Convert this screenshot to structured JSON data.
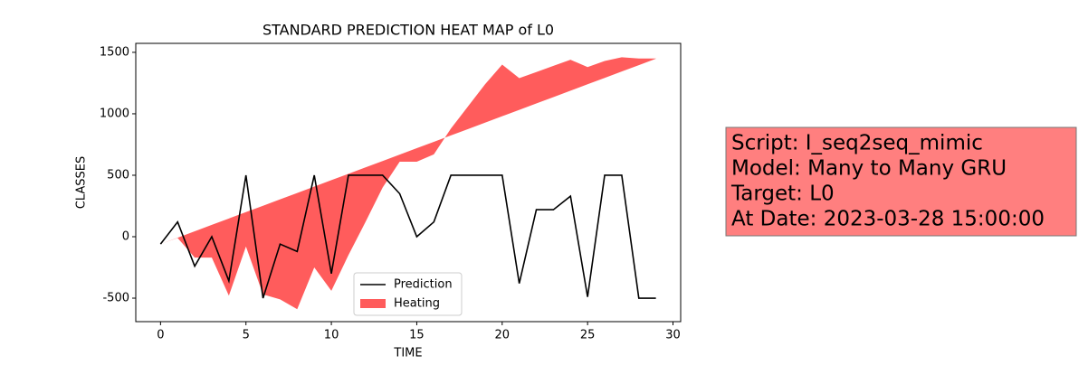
{
  "chart_data": {
    "type": "line",
    "title": "STANDARD PREDICTION HEAT MAP of L0",
    "xlabel": "TIME",
    "ylabel": "CLASSES",
    "x": [
      0,
      1,
      2,
      3,
      4,
      5,
      6,
      7,
      8,
      9,
      10,
      11,
      12,
      13,
      14,
      15,
      16,
      17,
      18,
      19,
      20,
      21,
      22,
      23,
      24,
      25,
      26,
      27,
      28,
      29
    ],
    "series": [
      {
        "name": "Prediction",
        "color": "#000000",
        "values": [
          -60,
          120,
          -240,
          0,
          -360,
          500,
          -500,
          -60,
          -120,
          500,
          -300,
          500,
          500,
          500,
          350,
          0,
          120,
          500,
          500,
          500,
          500,
          -380,
          220,
          220,
          330,
          -490,
          500,
          500,
          -500,
          -500
        ]
      },
      {
        "name": "Heating",
        "color": "#ff3333",
        "kind": "area",
        "values": [
          -60,
          -10,
          -170,
          -170,
          -480,
          -80,
          -470,
          -510,
          -590,
          -250,
          -440,
          -150,
          120,
          400,
          610,
          610,
          670,
          880,
          1060,
          1240,
          1400,
          1290,
          1340,
          1390,
          1440,
          1380,
          1430,
          1460,
          1450,
          1450
        ],
        "base": [
          -60,
          -8,
          44,
          96,
          148,
          200,
          252,
          304,
          356,
          408,
          460,
          512,
          564,
          616,
          668,
          720,
          772,
          824,
          876,
          928,
          980,
          1032,
          1084,
          1136,
          1188,
          1240,
          1292,
          1344,
          1396,
          1448
        ]
      }
    ],
    "xlim": [
      -1.45,
      30.45
    ],
    "ylim": [
      -691,
      1573
    ],
    "xticks": [
      0,
      5,
      10,
      15,
      20,
      25,
      30
    ],
    "yticks": [
      -500,
      0,
      500,
      1000,
      1500
    ],
    "legend": "lower center",
    "annotation": {
      "color": "#ff7f7f",
      "lines": [
        "Script: I_seq2seq_mimic",
        "Model: Many to Many GRU",
        "Target: L0",
        "At Date: 2023-03-28 15:00:00"
      ]
    }
  }
}
